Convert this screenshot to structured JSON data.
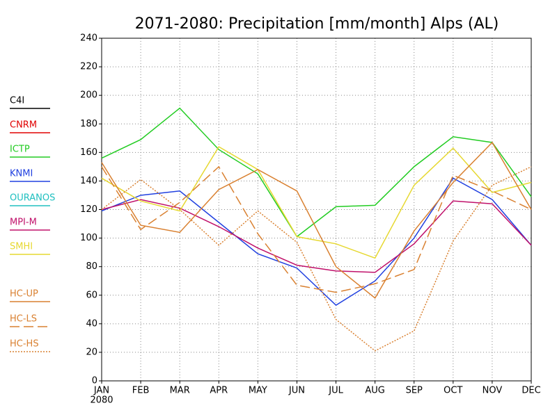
{
  "chart_data": {
    "type": "line",
    "title": "2071-2080: Precipitation [mm/month] Alps (AL)",
    "categories": [
      "JAN",
      "FEB",
      "MAR",
      "APR",
      "MAY",
      "JUN",
      "JUL",
      "AUG",
      "SEP",
      "OCT",
      "NOV",
      "DEC"
    ],
    "x_sublabel": "2080",
    "ylim": [
      0,
      240
    ],
    "yticks": [
      0,
      20,
      40,
      60,
      80,
      100,
      120,
      140,
      160,
      180,
      200,
      220,
      240
    ],
    "grid": true,
    "legend": "left",
    "series": [
      {
        "name": "C4I",
        "color": "#000000",
        "dash": "solid",
        "values": [
          null,
          null,
          null,
          null,
          null,
          null,
          null,
          null,
          null,
          null,
          null,
          null
        ]
      },
      {
        "name": "CNRM",
        "color": "#e00000",
        "dash": "solid",
        "values": [
          null,
          null,
          null,
          null,
          null,
          null,
          null,
          null,
          null,
          null,
          null,
          null
        ]
      },
      {
        "name": "ICTP",
        "color": "#22cc22",
        "dash": "solid",
        "values": [
          156,
          169,
          191,
          162,
          145,
          101,
          122,
          123,
          150,
          171,
          167,
          129
        ]
      },
      {
        "name": "KNMI",
        "color": "#2040e0",
        "dash": "solid",
        "values": [
          119,
          130,
          133,
          111,
          89,
          79,
          53,
          70,
          100,
          142,
          127,
          95
        ]
      },
      {
        "name": "OURANOS",
        "color": "#20c0c0",
        "dash": "solid",
        "values": [
          null,
          null,
          null,
          null,
          null,
          null,
          null,
          null,
          null,
          null,
          null,
          null
        ]
      },
      {
        "name": "MPI-M",
        "color": "#c0106a",
        "dash": "solid",
        "values": [
          120,
          127,
          121,
          108,
          93,
          81,
          77,
          76,
          96,
          126,
          124,
          95
        ]
      },
      {
        "name": "SMHI",
        "color": "#e6d830",
        "dash": "solid",
        "values": [
          142,
          126,
          119,
          164,
          148,
          101,
          96,
          86,
          137,
          163,
          132,
          139
        ]
      },
      {
        "name": "HC-UP",
        "color": "#d98030",
        "dash": "solid",
        "values": [
          153,
          109,
          104,
          134,
          148,
          133,
          80,
          58,
          105,
          139,
          167,
          120
        ]
      },
      {
        "name": "HC-LS",
        "color": "#d98030",
        "dash": "dashed",
        "values": [
          150,
          106,
          125,
          150,
          103,
          67,
          62,
          68,
          78,
          144,
          133,
          120
        ]
      },
      {
        "name": "HC-HS",
        "color": "#d98030",
        "dash": "dotted",
        "values": [
          120,
          141,
          120,
          95,
          119,
          97,
          43,
          21,
          35,
          98,
          137,
          150
        ]
      }
    ]
  }
}
